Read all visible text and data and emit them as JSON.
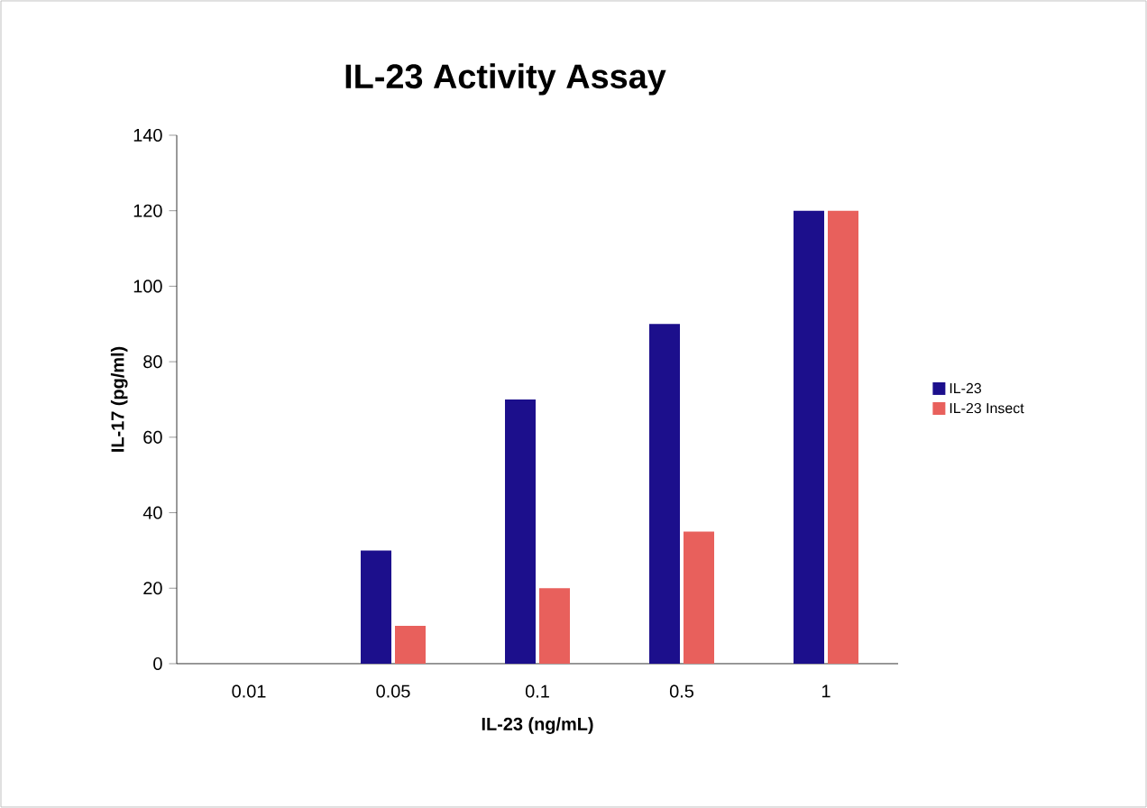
{
  "chart_data": {
    "type": "bar",
    "title": "IL-23 Activity Assay",
    "xlabel": "IL-23 (ng/mL)",
    "ylabel": "IL-17 (pg/ml)",
    "categories": [
      "0.01",
      "0.05",
      "0.1",
      "0.5",
      "1"
    ],
    "series": [
      {
        "name": "IL-23",
        "color": "#1c0f8c",
        "values": [
          0,
          30,
          70,
          90,
          120
        ]
      },
      {
        "name": "IL-23 Insect",
        "color": "#e8605c",
        "values": [
          0,
          10,
          20,
          35,
          120
        ]
      }
    ],
    "ylim": [
      0,
      140
    ],
    "yticks": [
      0,
      20,
      40,
      60,
      80,
      100,
      120,
      140
    ],
    "grid": false,
    "legend": "right"
  }
}
